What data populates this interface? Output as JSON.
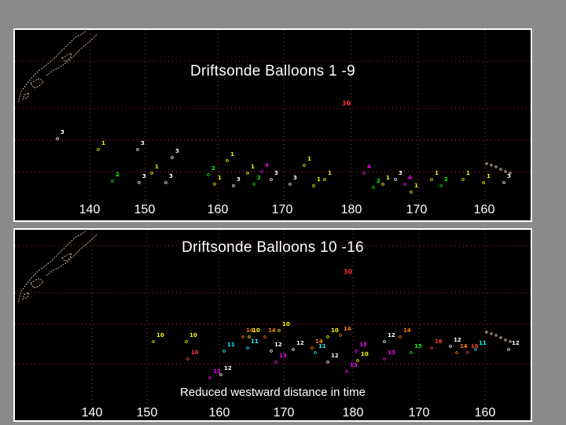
{
  "panels": [
    {
      "title": "Driftsonde Balloons 1 -9",
      "longitudes": [
        "140",
        "150",
        "160",
        "170",
        "180",
        "170",
        "160"
      ],
      "ref_label": "30"
    },
    {
      "title": "Driftsonde Balloons 10 -16",
      "caption": "Reduced westward distance in time",
      "longitudes": [
        "140",
        "150",
        "160",
        "170",
        "180",
        "170",
        "160"
      ],
      "ref_label": "30"
    }
  ],
  "colors": {
    "background": "#8a8a8a",
    "panel": "#000000",
    "border": "#ffffff",
    "coastline": "#e8c8b0",
    "grid": "#b03030",
    "ref_marker": "#ff3030"
  },
  "balloon_colors": {
    "1": "#ffff00",
    "2": "#00ff00",
    "3": "#ffffff",
    "4": "#ff00ff",
    "5": "#00ffff",
    "6": "#ff8000",
    "7": "#4040ff",
    "8": "#ff4040",
    "9": "#c0c0c0",
    "10": "#ffff00",
    "11": "#00ffff",
    "12": "#ffffff",
    "13": "#ff00ff",
    "14": "#ff8000",
    "15": "#00ff00",
    "16": "#ff4040"
  },
  "track_labels_top": [
    "3",
    "1",
    "3",
    "3",
    "2",
    "3",
    "1",
    "3",
    "2",
    "1",
    "1",
    "3",
    "1",
    "2",
    "4",
    "3",
    "3",
    "1",
    "1",
    "1",
    "4",
    "2",
    "1",
    "3",
    "4",
    "1",
    "1",
    "2",
    "1",
    "1",
    "3"
  ],
  "track_labels_bottom": [
    "10",
    "10",
    "16",
    "11",
    "13",
    "12",
    "14",
    "10",
    "14",
    "11",
    "12",
    "13",
    "10",
    "12",
    "14",
    "10",
    "11",
    "12",
    "13",
    "14",
    "10",
    "12",
    "13",
    "14",
    "15",
    "16",
    "12",
    "14",
    "16",
    "11",
    "12",
    "13"
  ]
}
